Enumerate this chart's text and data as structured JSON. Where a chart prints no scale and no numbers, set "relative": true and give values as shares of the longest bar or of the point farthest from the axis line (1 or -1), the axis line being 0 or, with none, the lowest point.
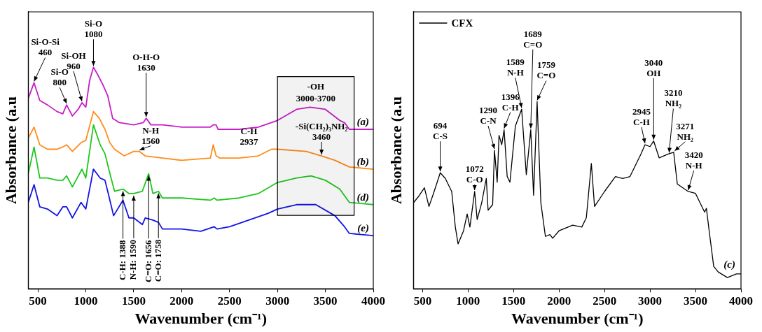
{
  "chart_data": [
    {
      "type": "line",
      "xlabel": "Wavenumber (cm⁻¹)",
      "ylabel": "Absorbance (a.u",
      "xlim": [
        400,
        4000
      ],
      "xticks": [
        500,
        1000,
        1500,
        2000,
        2500,
        3000,
        3500,
        4000
      ],
      "relative": true,
      "series": [
        {
          "name": "(a)",
          "color": "#c71ec7",
          "x": [
            400,
            460,
            520,
            600,
            700,
            760,
            800,
            860,
            920,
            960,
            1000,
            1040,
            1080,
            1120,
            1180,
            1230,
            1280,
            1350,
            1500,
            1600,
            1630,
            1680,
            1800,
            2000,
            2300,
            2330,
            2360,
            2380,
            2600,
            2800,
            3000,
            3200,
            3340,
            3500,
            3650,
            3700,
            3750,
            4000
          ],
          "values": [
            0.86,
            0.93,
            0.85,
            0.83,
            0.8,
            0.79,
            0.83,
            0.78,
            0.81,
            0.84,
            0.82,
            0.94,
            1.0,
            0.97,
            0.92,
            0.87,
            0.77,
            0.75,
            0.74,
            0.75,
            0.77,
            0.74,
            0.74,
            0.73,
            0.73,
            0.74,
            0.74,
            0.72,
            0.72,
            0.73,
            0.76,
            0.81,
            0.82,
            0.81,
            0.76,
            0.75,
            0.72,
            0.72
          ]
        },
        {
          "name": "(b)",
          "color": "#ff8c1a",
          "x": [
            400,
            460,
            520,
            600,
            700,
            760,
            800,
            860,
            950,
            1000,
            1080,
            1140,
            1200,
            1250,
            1300,
            1400,
            1500,
            1560,
            1620,
            1800,
            2000,
            2300,
            2330,
            2360,
            2400,
            2600,
            2800,
            2937,
            3000,
            3300,
            3460,
            3600,
            3750,
            4000
          ],
          "values": [
            0.68,
            0.73,
            0.65,
            0.63,
            0.63,
            0.64,
            0.65,
            0.62,
            0.66,
            0.67,
            0.8,
            0.77,
            0.72,
            0.66,
            0.63,
            0.6,
            0.62,
            0.62,
            0.6,
            0.59,
            0.58,
            0.59,
            0.65,
            0.6,
            0.59,
            0.59,
            0.6,
            0.63,
            0.63,
            0.62,
            0.6,
            0.58,
            0.55,
            0.54
          ]
        },
        {
          "name": "(d)",
          "color": "#1ec81e",
          "x": [
            400,
            460,
            520,
            600,
            700,
            760,
            800,
            860,
            960,
            1000,
            1080,
            1150,
            1200,
            1240,
            1300,
            1388,
            1450,
            1500,
            1590,
            1656,
            1700,
            1758,
            1800,
            2000,
            2300,
            2340,
            2370,
            2600,
            2800,
            3000,
            3200,
            3350,
            3500,
            3650,
            3750,
            4000
          ],
          "values": [
            0.52,
            0.64,
            0.5,
            0.5,
            0.49,
            0.49,
            0.51,
            0.46,
            0.54,
            0.5,
            0.74,
            0.65,
            0.61,
            0.54,
            0.44,
            0.45,
            0.43,
            0.43,
            0.44,
            0.52,
            0.43,
            0.44,
            0.41,
            0.41,
            0.4,
            0.41,
            0.4,
            0.41,
            0.43,
            0.48,
            0.5,
            0.51,
            0.49,
            0.45,
            0.39,
            0.38
          ]
        },
        {
          "name": "(e)",
          "color": "#1414e6",
          "x": [
            400,
            460,
            520,
            600,
            700,
            760,
            800,
            860,
            950,
            1000,
            1080,
            1150,
            1200,
            1240,
            1290,
            1388,
            1450,
            1500,
            1590,
            1620,
            1700,
            1758,
            1800,
            2000,
            2200,
            2340,
            2370,
            2500,
            2700,
            2900,
            3000,
            3200,
            3400,
            3600,
            3700,
            3750,
            4000
          ],
          "values": [
            0.39,
            0.47,
            0.37,
            0.36,
            0.33,
            0.37,
            0.37,
            0.32,
            0.39,
            0.36,
            0.54,
            0.5,
            0.49,
            0.42,
            0.33,
            0.4,
            0.32,
            0.32,
            0.29,
            0.32,
            0.31,
            0.3,
            0.27,
            0.27,
            0.26,
            0.28,
            0.27,
            0.28,
            0.31,
            0.34,
            0.36,
            0.38,
            0.38,
            0.33,
            0.28,
            0.25,
            0.24
          ]
        }
      ],
      "annotations": [
        {
          "text": "Si-O-Si\n460",
          "x": 460,
          "y": 0.93
        },
        {
          "text": "Si-O\n800",
          "x": 800,
          "y": 0.83
        },
        {
          "text": "Si-OH\n960",
          "x": 960,
          "y": 0.84
        },
        {
          "text": "Si-O\n1080",
          "x": 1080,
          "y": 1.0
        },
        {
          "text": "O-H-O\n1630",
          "x": 1630,
          "y": 0.77
        },
        {
          "text": "N-H\n1560",
          "x": 1560,
          "y": 0.62
        },
        {
          "text": "C-H\n2937",
          "x": 2937,
          "y": 0.63
        },
        {
          "text": "-Si(CH₂)₃NH₂\n3460",
          "x": 3460,
          "y": 0.6
        },
        {
          "text": "C-H: 1388",
          "x": 1388,
          "y": 0.45
        },
        {
          "text": "N-H: 1590",
          "x": 1500,
          "y": 0.43
        },
        {
          "text": "C=O: 1656",
          "x": 1656,
          "y": 0.52
        },
        {
          "text": "C=O: 1758",
          "x": 1758,
          "y": 0.44
        }
      ],
      "bands": [
        {
          "axis": "x",
          "from": 3000,
          "to": 3800,
          "label": "-OH\n3000-3700",
          "color": "#000000"
        }
      ]
    },
    {
      "type": "line",
      "xlabel": "Wavenumber (cm⁻¹)",
      "ylabel": "Absorbance (a.u",
      "xlim": [
        400,
        4000
      ],
      "xticks": [
        500,
        1000,
        1500,
        2000,
        2500,
        3000,
        3500,
        4000
      ],
      "relative": true,
      "legend": "top left",
      "series": [
        {
          "name": "CFX",
          "color": "#000000",
          "x": [
            400,
            450,
            520,
            570,
            620,
            694,
            750,
            820,
            860,
            890,
            950,
            990,
            1020,
            1072,
            1100,
            1150,
            1200,
            1220,
            1270,
            1290,
            1320,
            1340,
            1370,
            1396,
            1430,
            1460,
            1520,
            1589,
            1640,
            1689,
            1720,
            1759,
            1800,
            1850,
            1900,
            1930,
            2000,
            2150,
            2250,
            2300,
            2355,
            2390,
            2500,
            2620,
            2700,
            2780,
            2900,
            2945,
            3000,
            3040,
            3100,
            3200,
            3260,
            3300,
            3420,
            3500,
            3600,
            3620,
            3650,
            3700,
            3750,
            3850,
            3950,
            4000
          ],
          "values": [
            0.46,
            0.49,
            0.54,
            0.44,
            0.51,
            0.62,
            0.59,
            0.52,
            0.33,
            0.24,
            0.31,
            0.4,
            0.33,
            0.52,
            0.37,
            0.46,
            0.59,
            0.42,
            0.45,
            0.74,
            0.57,
            0.82,
            0.77,
            0.85,
            0.6,
            0.57,
            0.87,
            0.96,
            0.61,
            0.85,
            0.5,
            1.0,
            0.46,
            0.28,
            0.29,
            0.27,
            0.31,
            0.34,
            0.33,
            0.38,
            0.67,
            0.44,
            0.52,
            0.6,
            0.59,
            0.6,
            0.72,
            0.77,
            0.76,
            0.79,
            0.7,
            0.72,
            0.73,
            0.56,
            0.52,
            0.51,
            0.41,
            0.43,
            0.31,
            0.12,
            0.09,
            0.06,
            0.08,
            0.08
          ]
        }
      ],
      "annotations": [
        {
          "text": "694\nC-S",
          "x": 694,
          "y": 0.62
        },
        {
          "text": "1072\nC-O",
          "x": 1072,
          "y": 0.52
        },
        {
          "text": "1290\nC-N",
          "x": 1290,
          "y": 0.74
        },
        {
          "text": "1396\nC-H",
          "x": 1396,
          "y": 0.85
        },
        {
          "text": "1589\nN-H",
          "x": 1589,
          "y": 0.96
        },
        {
          "text": "1689\nC=O",
          "x": 1689,
          "y": 0.85
        },
        {
          "text": "1759\nC=O",
          "x": 1759,
          "y": 1.0
        },
        {
          "text": "2945\nC-H",
          "x": 2945,
          "y": 0.77
        },
        {
          "text": "3040\nOH",
          "x": 3040,
          "y": 0.79
        },
        {
          "text": "3210\nNH₂",
          "x": 3210,
          "y": 0.72
        },
        {
          "text": "3271\nNH₂",
          "x": 3271,
          "y": 0.73
        },
        {
          "text": "3420\nN-H",
          "x": 3420,
          "y": 0.52
        },
        "(c)"
      ]
    }
  ]
}
